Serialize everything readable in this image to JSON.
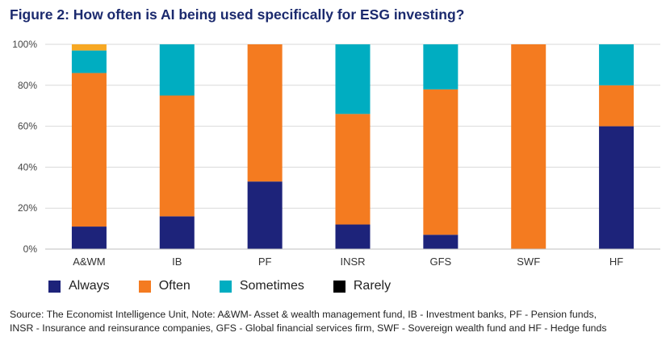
{
  "title": "Figure 2: How often is AI being used specifically for ESG investing?",
  "source": {
    "line1": "Source: The Economist Intelligence Unit, Note: A&WM- Asset & wealth management fund, IB - Investment banks, PF - Pension funds,",
    "line2": "INSR - Insurance and reinsurance companies, GFS - Global financial services firm, SWF - Sovereign wealth fund and HF - Hedge funds"
  },
  "colors": {
    "Always": "#1d237a",
    "Often": "#f47b20",
    "Sometimes": "#00adc1",
    "Rarely": "#f7a823",
    "title": "#1b2a6e",
    "grid": "#d9d9d9"
  },
  "legend": [
    {
      "label": "Always",
      "color": "#1d237a"
    },
    {
      "label": "Often",
      "color": "#f47b20"
    },
    {
      "label": "Sometimes",
      "color": "#00adc1"
    },
    {
      "label": "Rarely",
      "color": "#000000"
    }
  ],
  "chart_data": {
    "type": "bar",
    "stacked": true,
    "categories": [
      "A&WM",
      "IB",
      "PF",
      "INSR",
      "GFS",
      "SWF",
      "HF"
    ],
    "series": [
      {
        "name": "Always",
        "values": [
          11,
          16,
          33,
          12,
          7,
          0,
          60
        ]
      },
      {
        "name": "Often",
        "values": [
          75,
          59,
          67,
          54,
          71,
          100,
          20
        ]
      },
      {
        "name": "Sometimes",
        "values": [
          11,
          25,
          0,
          34,
          22,
          0,
          20
        ]
      },
      {
        "name": "Rarely",
        "values": [
          3,
          0,
          0,
          0,
          0,
          0,
          0
        ]
      }
    ],
    "yticks": [
      "0%",
      "20%",
      "40%",
      "60%",
      "80%",
      "100%"
    ],
    "ylim": [
      0,
      100
    ],
    "grid": true,
    "legend_position": "bottom"
  }
}
